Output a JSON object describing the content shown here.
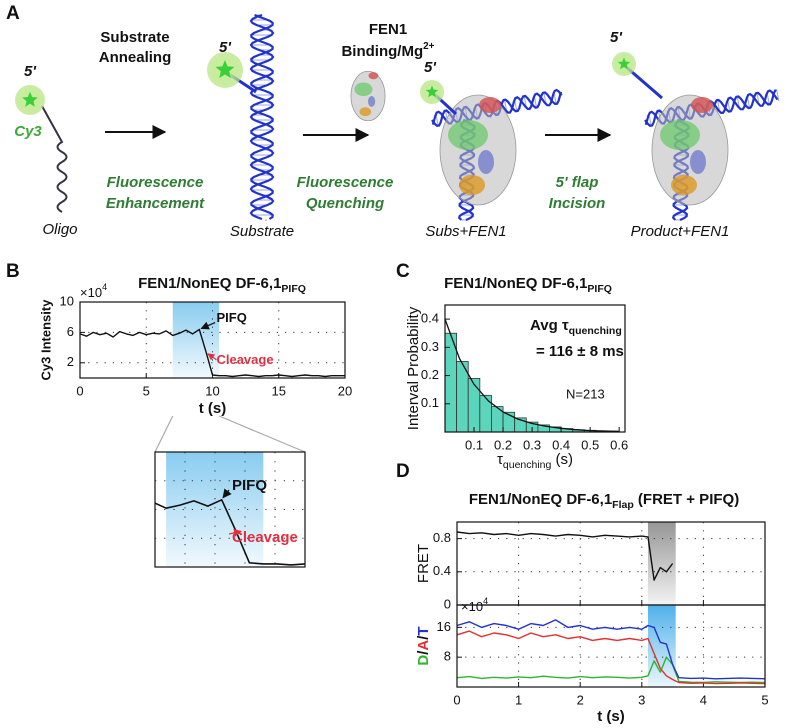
{
  "diagram": {
    "panel_label": "A",
    "labels": {
      "oligo_end": "5'",
      "dye": "Cy3",
      "oligo": "Oligo",
      "substrate_end": "5'",
      "substrate": "Substrate",
      "complex_end": "5'",
      "complex": "Subs+FEN1",
      "product_end": "5'",
      "product": "Product+FEN1"
    },
    "steps": [
      {
        "action": [
          "Substrate",
          "Annealing"
        ],
        "effect": [
          "Fluorescence",
          "Enhancement"
        ]
      },
      {
        "action": [
          "FEN1",
          "Binding/Mg"
        ],
        "action_sup": "2+",
        "effect": [
          "Fluorescence",
          "Quenching"
        ]
      },
      {
        "effect": [
          "5' flap",
          "Incision"
        ]
      }
    ]
  },
  "chart_data": [
    {
      "type": "line",
      "panel_label": "B",
      "title": "FEN1/NonEQ DF-6,1",
      "title_sub": "PIFQ",
      "y_multiplier": "×10",
      "y_multiplier_exp": "4",
      "ylabel": "Cy3 Intensity",
      "xlabel": "t (s)",
      "x": [
        0,
        0.5,
        1,
        1.5,
        2,
        2.5,
        3,
        3.5,
        4,
        4.5,
        5,
        5.5,
        6,
        6.5,
        7,
        7.5,
        8,
        8.5,
        9,
        9.5,
        10,
        10.5,
        11,
        11.5,
        12,
        12.5,
        13,
        13.5,
        14,
        14.5,
        15,
        15.5,
        16,
        16.5,
        17,
        17.5,
        18,
        18.5,
        19,
        19.5,
        20
      ],
      "series": [
        {
          "color": "#111111",
          "values": [
            5.8,
            5.5,
            6.0,
            5.7,
            5.9,
            5.4,
            6.1,
            5.8,
            5.6,
            6.0,
            5.7,
            5.9,
            5.8,
            6.2,
            5.6,
            5.9,
            6.3,
            5.8,
            6.4,
            3.5,
            0.4,
            0.3,
            0.3,
            0.2,
            0.3,
            0.4,
            0.3,
            0.2,
            0.3,
            0.3,
            0.4,
            0.3,
            0.2,
            0.3,
            0.4,
            0.3,
            0.3,
            0.2,
            0.3,
            0.3,
            0.3
          ]
        }
      ],
      "xlim": [
        0,
        20
      ],
      "ylim": [
        0,
        10
      ],
      "xticks": [
        0,
        5,
        10,
        15,
        20
      ],
      "yticks": [
        2,
        6,
        10
      ],
      "grid": true,
      "highlight": [
        7,
        10.5
      ],
      "highlight_color": "#7cc6ee",
      "annotations": [
        {
          "text": "PIFQ",
          "color": "#111111"
        },
        {
          "text": "Cleavage",
          "color": "#e0303f"
        }
      ],
      "inset": {
        "xlim": [
          6.6,
          12
        ],
        "annotations": [
          {
            "text": "PIFQ",
            "color": "#111111"
          },
          {
            "text": "Cleavage",
            "color": "#e0303f"
          }
        ]
      }
    },
    {
      "type": "histogram",
      "panel_label": "C",
      "title": "FEN1/NonEQ DF-6,1",
      "title_sub": "PIFQ",
      "bins": [
        0,
        0.04,
        0.08,
        0.12,
        0.16,
        0.2,
        0.24,
        0.28,
        0.32,
        0.36,
        0.4,
        0.44,
        0.48,
        0.52,
        0.56,
        0.6
      ],
      "values": [
        0.35,
        0.25,
        0.19,
        0.13,
        0.09,
        0.07,
        0.05,
        0.035,
        0.025,
        0.018,
        0.012,
        0.008,
        0.006,
        0.004,
        0.003
      ],
      "color": "#5bd6bc",
      "fit": {
        "color": "#111111",
        "x": [
          0,
          0.05,
          0.1,
          0.15,
          0.2,
          0.25,
          0.3,
          0.35,
          0.4,
          0.45,
          0.5,
          0.55,
          0.6
        ],
        "values": [
          0.4,
          0.26,
          0.169,
          0.11,
          0.071,
          0.046,
          0.03,
          0.02,
          0.013,
          0.008,
          0.005,
          0.0035,
          0.002
        ]
      },
      "xlim": [
        0,
        0.62
      ],
      "ylim": [
        0,
        0.45
      ],
      "xticks": [
        0.1,
        0.2,
        0.3,
        0.4,
        0.5,
        0.6
      ],
      "yticks": [
        0.1,
        0.2,
        0.3,
        0.4
      ],
      "xlabel": "τ",
      "xlabel_sub": "quenching",
      "xlabel_suffix": " (s)",
      "ylabel": "Interval Probability",
      "annotations": [
        {
          "text": "Avg τ",
          "sub": "quenching"
        },
        {
          "text": "= 116 ± 8 ms"
        },
        {
          "text": "N=213"
        }
      ]
    },
    {
      "type": "line",
      "panel_label": "D",
      "title": "FEN1/NonEQ DF-6,1",
      "title_sub": "Flap",
      "title_suffix": " (FRET + PIFQ)",
      "xlabel": "t (s)",
      "x": [
        0,
        0.2,
        0.4,
        0.6,
        0.8,
        1,
        1.2,
        1.4,
        1.6,
        1.8,
        2,
        2.2,
        2.4,
        2.6,
        2.8,
        3,
        3.1,
        3.2,
        3.3,
        3.4,
        3.5,
        3.6,
        3.8,
        4,
        4.2,
        4.4,
        4.6,
        4.8,
        5
      ],
      "xlim": [
        0,
        5
      ],
      "xticks": [
        0,
        1,
        2,
        3,
        4,
        5
      ],
      "grid": true,
      "highlight": [
        3.1,
        3.55
      ],
      "subplots": [
        {
          "ylabel": [
            {
              "text": "FRET"
            }
          ],
          "ylim": [
            0,
            1
          ],
          "yticks": [
            0,
            0.4,
            0.8
          ],
          "highlight_color": "#8a8a8a",
          "series": [
            {
              "color": "#111111",
              "values": [
                0.88,
                0.86,
                0.87,
                0.85,
                0.86,
                0.84,
                0.86,
                0.85,
                0.83,
                0.85,
                0.84,
                0.82,
                0.84,
                0.83,
                0.82,
                0.83,
                0.82,
                0.3,
                0.45,
                0.4,
                0.5,
                null,
                null,
                null,
                null,
                null,
                null,
                null,
                null
              ]
            }
          ]
        },
        {
          "ylabel": [
            {
              "text": "D",
              "color": "#2fb52f"
            },
            {
              "text": "/",
              "color": "#111111"
            },
            {
              "text": "A",
              "color": "#e03030"
            },
            {
              "text": "/",
              "color": "#111111"
            },
            {
              "text": "T",
              "color": "#2233cc"
            }
          ],
          "y_multiplier": "×10",
          "y_multiplier_exp": "4",
          "ylim": [
            0,
            22
          ],
          "yticks": [
            8,
            16
          ],
          "highlight_color": "#3aa8e8",
          "series": [
            {
              "color": "#2fb52f",
              "values": [
                2.5,
                2.8,
                2.3,
                2.6,
                2.4,
                2.7,
                2.5,
                2.9,
                2.6,
                2.4,
                2.8,
                2.5,
                2.7,
                2.6,
                2.4,
                2.6,
                3,
                7,
                4,
                8,
                6,
                1.5,
                1.3,
                1.2,
                1.4,
                1.3,
                1.2,
                1.3,
                1.2
              ]
            },
            {
              "color": "#e03030",
              "values": [
                14,
                15,
                13.5,
                14.5,
                14,
                13,
                14.5,
                13.5,
                14,
                13,
                13.5,
                12.5,
                13,
                12.5,
                13,
                12.5,
                13,
                9,
                5,
                3,
                2,
                1.2,
                1,
                1.1,
                0.9,
                1,
                1.1,
                1,
                0.9
              ]
            },
            {
              "color": "#2233cc",
              "values": [
                16.5,
                17.5,
                16,
                17,
                16.5,
                15.5,
                17,
                16.5,
                18,
                16,
                16.5,
                15.5,
                16,
                15.5,
                16,
                15.5,
                16.5,
                16,
                12,
                11.5,
                6,
                2.5,
                2.3,
                2.4,
                2.2,
                2.3,
                2.4,
                2.3,
                2.2
              ]
            }
          ]
        }
      ]
    }
  ]
}
